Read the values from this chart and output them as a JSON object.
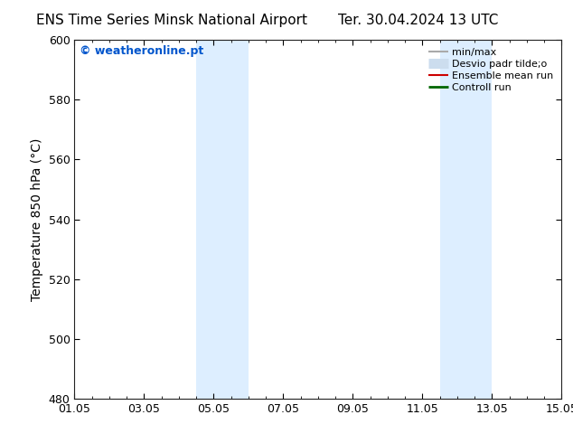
{
  "title_left": "ENS Time Series Minsk National Airport",
  "title_right": "Ter. 30.04.2024 13 UTC",
  "ylabel": "Temperature 850 hPa (°C)",
  "ylim": [
    480,
    600
  ],
  "yticks": [
    480,
    500,
    520,
    540,
    560,
    580,
    600
  ],
  "xtick_positions": [
    0,
    2,
    4,
    6,
    8,
    10,
    12,
    14
  ],
  "xtick_labels": [
    "01.05",
    "03.05",
    "05.05",
    "07.05",
    "09.05",
    "11.05",
    "13.05",
    "15.05"
  ],
  "xlim": [
    0,
    14
  ],
  "shaded_bands": [
    {
      "x_start": 3.5,
      "x_end": 5.0
    },
    {
      "x_start": 10.5,
      "x_end": 12.0
    }
  ],
  "shaded_color": "#ddeeff",
  "background_color": "#ffffff",
  "watermark_text": "© weatheronline.pt",
  "watermark_color": "#0055cc",
  "legend_entries": [
    {
      "label": "min/max",
      "color": "#aaaaaa",
      "lw": 1.5
    },
    {
      "label": "Desvio padr tilde;o",
      "color": "#ccddee",
      "lw": 8
    },
    {
      "label": "Ensemble mean run",
      "color": "#cc0000",
      "lw": 1.5
    },
    {
      "label": "Controll run",
      "color": "#006600",
      "lw": 2.0
    }
  ],
  "title_fontsize": 11,
  "axis_label_fontsize": 10,
  "tick_fontsize": 9,
  "legend_fontsize": 8,
  "watermark_fontsize": 9
}
